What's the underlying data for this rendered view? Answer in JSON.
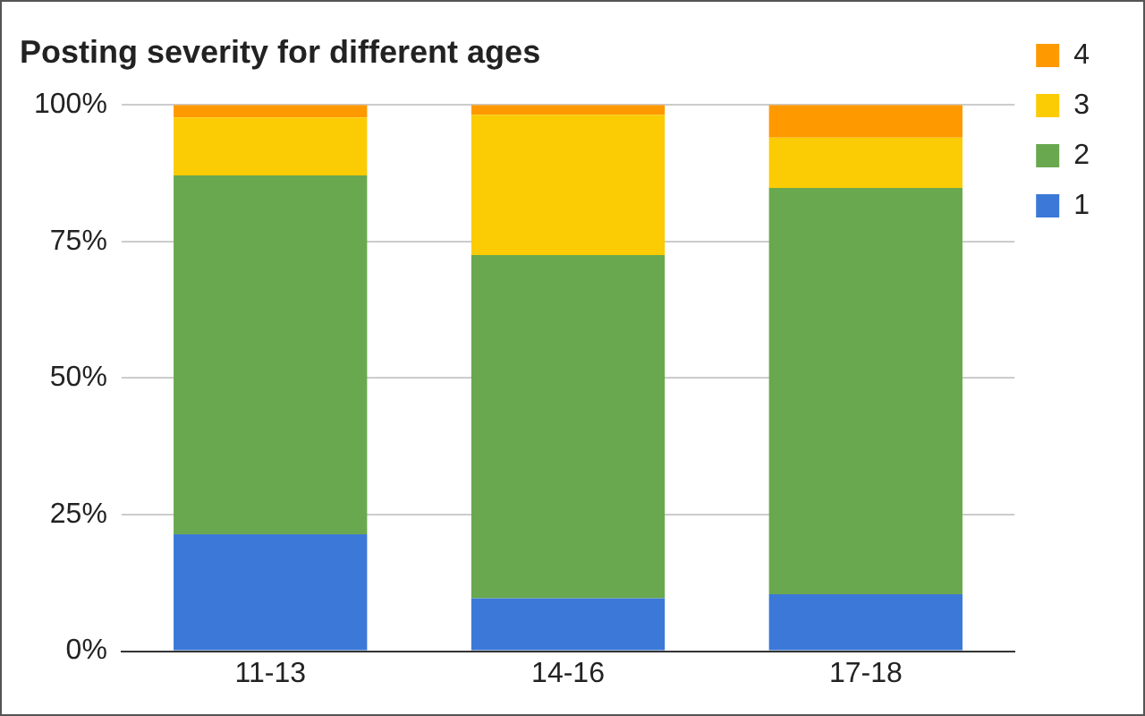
{
  "chart_data": {
    "type": "bar",
    "title": "Posting severity for different ages",
    "categories": [
      "11-13",
      "14-16",
      "17-18"
    ],
    "stacked": true,
    "series": [
      {
        "name": "1",
        "color": "#3c78d8",
        "values": [
          21.4,
          9.7,
          10.4
        ]
      },
      {
        "name": "2",
        "color": "#6aa84f",
        "values": [
          65.7,
          62.8,
          74.4
        ]
      },
      {
        "name": "3",
        "color": "#fbcb04",
        "values": [
          10.6,
          25.7,
          9.2
        ]
      },
      {
        "name": "4",
        "color": "#ff9900",
        "values": [
          2.3,
          1.8,
          6.0
        ]
      }
    ],
    "ylim": [
      0,
      100
    ],
    "yticks": [
      {
        "value": 0,
        "label": "0%"
      },
      {
        "value": 25,
        "label": "25%"
      },
      {
        "value": 50,
        "label": "50%"
      },
      {
        "value": 75,
        "label": "75%"
      },
      {
        "value": 100,
        "label": "100%"
      }
    ],
    "grid": "y",
    "legend": "top right"
  }
}
